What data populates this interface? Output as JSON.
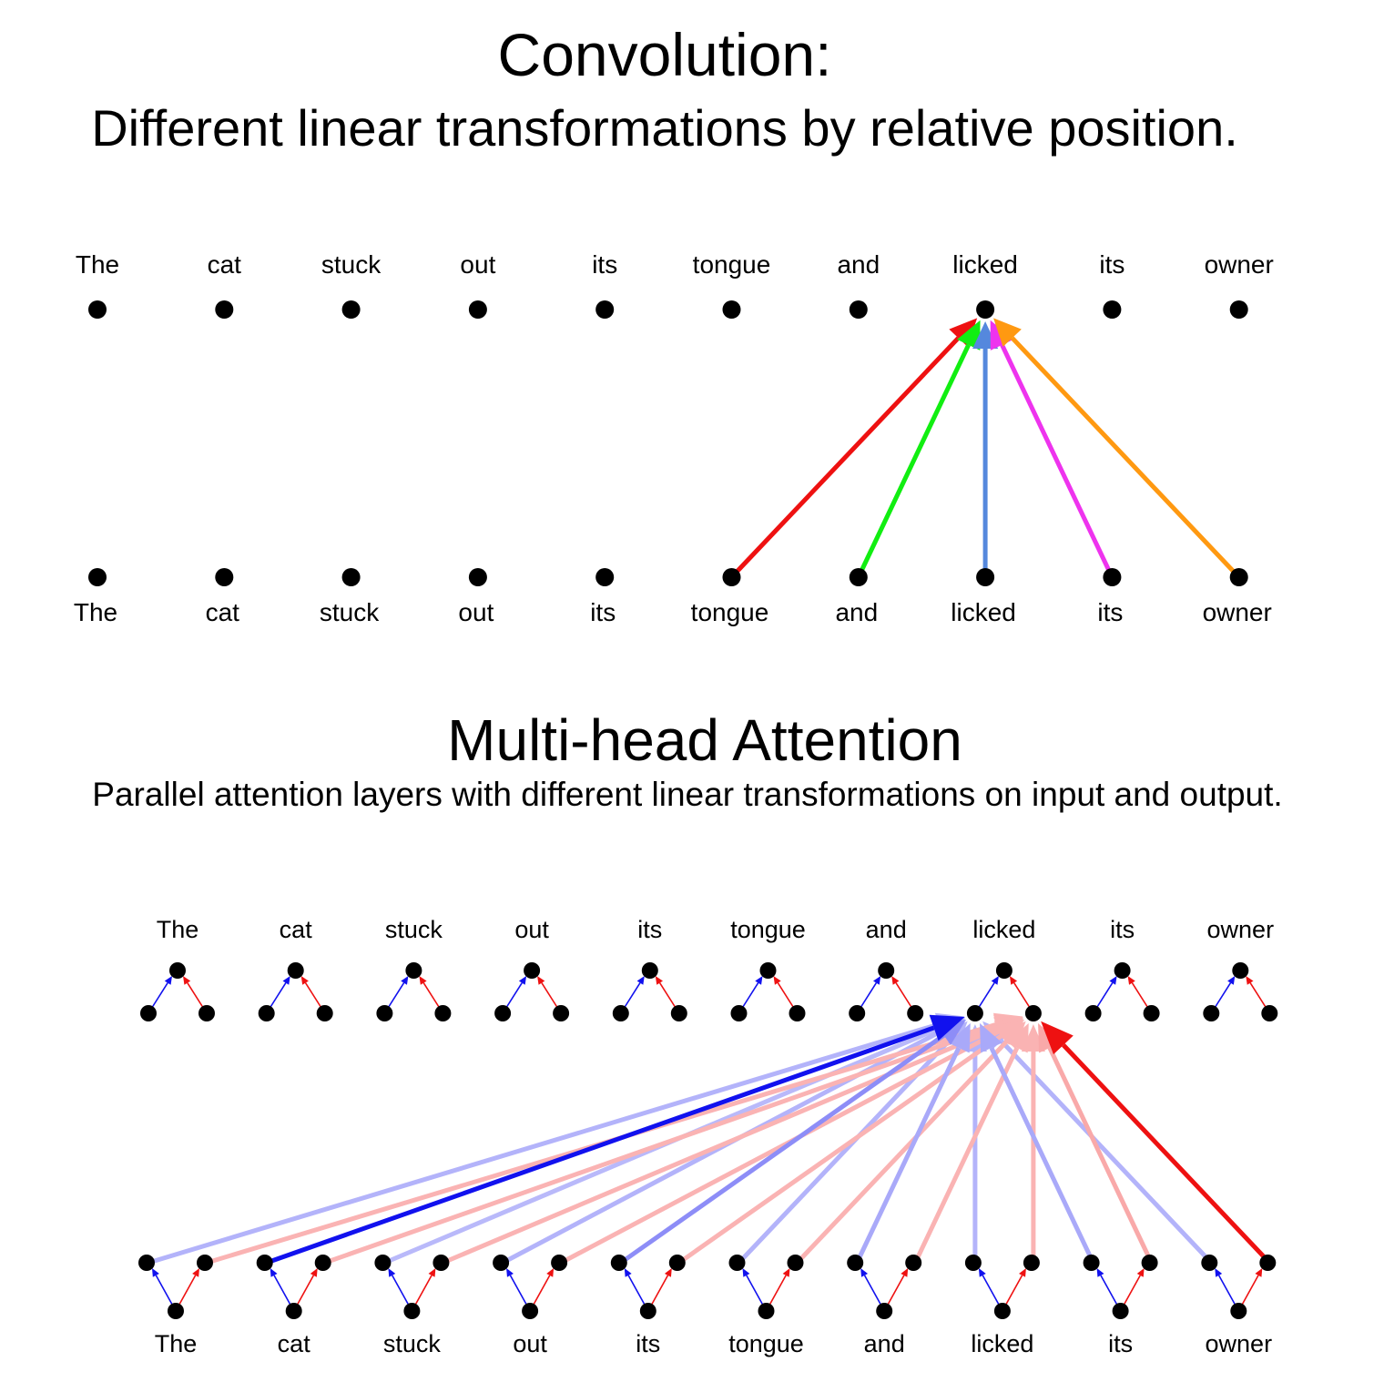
{
  "convolution": {
    "title": "Convolution:",
    "subtitle": "Different linear transformations by relative position.",
    "top_words": [
      "The",
      "cat",
      "stuck",
      "out",
      "its",
      "tongue",
      "and",
      "licked",
      "its",
      "owner"
    ],
    "bottom_words": [
      "The",
      "cat",
      "stuck",
      "out",
      "its",
      "tongue",
      "and",
      "licked",
      "its",
      "owner"
    ],
    "target_index": 7,
    "arrows": [
      {
        "from": 5,
        "color": "#ee1111"
      },
      {
        "from": 6,
        "color": "#11ee11"
      },
      {
        "from": 7,
        "color": "#5588dd"
      },
      {
        "from": 8,
        "color": "#ee33ee"
      },
      {
        "from": 9,
        "color": "#ff9911"
      }
    ]
  },
  "attention": {
    "title": "Multi-head Attention",
    "subtitle": "Parallel attention layers with different linear transformations on input and output.",
    "top_words": [
      "The",
      "cat",
      "stuck",
      "out",
      "its",
      "tongue",
      "and",
      "licked",
      "its",
      "owner"
    ],
    "bottom_words": [
      "The",
      "cat",
      "stuck",
      "out",
      "its",
      "tongue",
      "and",
      "licked",
      "its",
      "owner"
    ],
    "target_index": 7,
    "head_colors": {
      "blue": "#1111ee",
      "red": "#ee1111"
    },
    "blue_weights": [
      0.15,
      1.0,
      0.12,
      0.15,
      0.35,
      0.15,
      0.2,
      0.15,
      0.2,
      0.15
    ],
    "red_weights": [
      0.15,
      0.15,
      0.15,
      0.15,
      0.15,
      0.15,
      0.15,
      0.15,
      0.2,
      1.0
    ]
  }
}
